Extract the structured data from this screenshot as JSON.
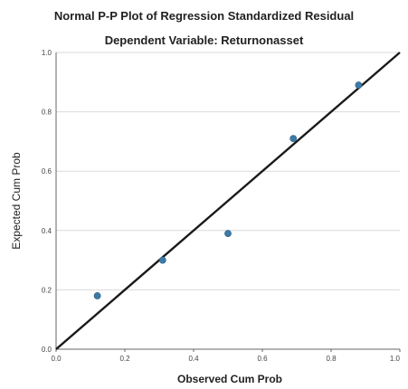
{
  "chart_data": {
    "type": "scatter",
    "title": "Normal P-P Plot of Regression Standardized Residual",
    "subtitle": "Dependent Variable: Returnonasset",
    "xlabel": "Observed Cum Prob",
    "ylabel": "Expected Cum Prob",
    "xlim": [
      0.0,
      1.0
    ],
    "ylim": [
      0.0,
      1.0
    ],
    "xticks": [
      "0.0",
      "0.2",
      "0.4",
      "0.6",
      "0.8",
      "1.0"
    ],
    "yticks": [
      "0.0",
      "0.2",
      "0.4",
      "0.6",
      "0.8",
      "1.0"
    ],
    "grid": "horizontal",
    "reference_line": {
      "from": [
        0.0,
        0.0
      ],
      "to": [
        1.0,
        1.0
      ]
    },
    "points": [
      {
        "x": 0.12,
        "y": 0.18
      },
      {
        "x": 0.31,
        "y": 0.3
      },
      {
        "x": 0.5,
        "y": 0.39
      },
      {
        "x": 0.69,
        "y": 0.71
      },
      {
        "x": 0.88,
        "y": 0.89
      }
    ],
    "colors": {
      "points": "#3d7aa8",
      "line": "#1a1a1a",
      "grid": "#d9d9d9"
    }
  }
}
